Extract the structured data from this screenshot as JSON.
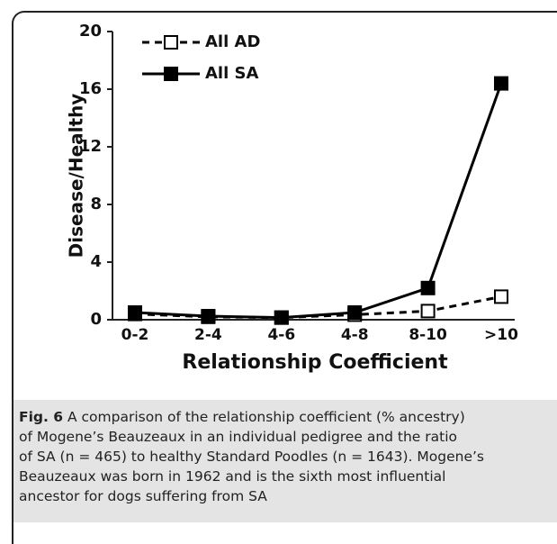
{
  "chart_data": {
    "type": "line",
    "xlabel": "Relationship Coefficient",
    "ylabel": "Disease/Healthy",
    "categories": [
      "0-2",
      "2-4",
      "4-6",
      "4-8",
      "8-10",
      ">10"
    ],
    "series": [
      {
        "name": "All AD",
        "color": "#000000",
        "dashed": true,
        "marker": "open-square",
        "values": [
          0.4,
          0.2,
          0.15,
          0.35,
          0.6,
          1.6
        ]
      },
      {
        "name": "All SA",
        "color": "#000000",
        "dashed": false,
        "marker": "filled-square",
        "values": [
          0.5,
          0.25,
          0.15,
          0.5,
          2.2,
          16.4
        ]
      }
    ],
    "ylim": [
      0,
      20
    ],
    "yticks": [
      0,
      4,
      8,
      12,
      16,
      20
    ],
    "grid": false,
    "legend": "upper left"
  },
  "caption": {
    "label": "Fig. 6",
    "lines": [
      " A comparison of the relationship coefficient (% ancestry)",
      "of Mogene’s Beauzeaux in an individual pedigree and the ratio",
      "of SA (n = 465) to healthy Standard Poodles (n = 1643). Mogene’s",
      "Beauzeaux was born in 1962 and is the sixth most influential",
      "ancestor for dogs suffering from SA"
    ]
  }
}
